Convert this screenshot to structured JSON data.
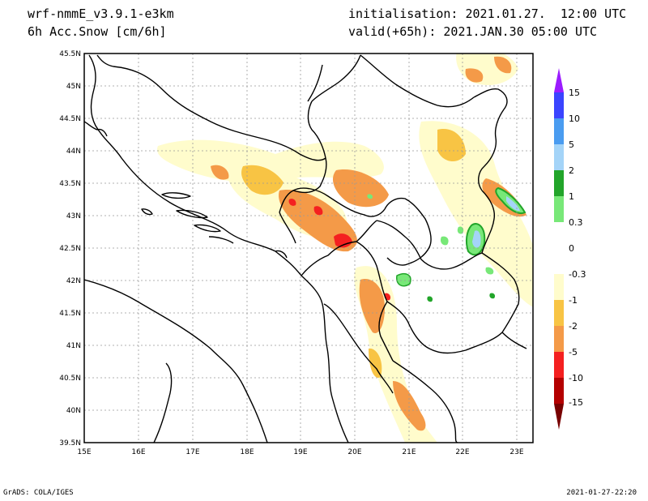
{
  "header": {
    "model": "wrf-nmmE_v3.9.1-e3km",
    "field": "6h Acc.Snow [cm/6h]",
    "initialisation": "initialisation: 2021.01.27.  12:00 UTC",
    "valid": "valid(+65h): 2021.JAN.30 05:00 UTC"
  },
  "footer": {
    "left": "GrADS: COLA/IGES",
    "right": "2021-01-27-22:20"
  },
  "axes": {
    "lat_labels": [
      "45.5N",
      "45N",
      "44.5N",
      "44N",
      "43.5N",
      "43N",
      "42.5N",
      "42N",
      "41.5N",
      "41N",
      "40.5N",
      "40N",
      "39.5N"
    ],
    "lon_labels": [
      "15E",
      "16E",
      "17E",
      "18E",
      "19E",
      "20E",
      "21E",
      "22E",
      "23E"
    ]
  },
  "legend": {
    "labels": [
      "15",
      "10",
      "5",
      "2",
      "1",
      "0.3",
      "0",
      "-0.3",
      "-1",
      "-2",
      "-5",
      "-10",
      "-15"
    ],
    "colors": [
      "#9b1cff",
      "#3a44ff",
      "#4a9cf0",
      "#a4d4f8",
      "#22a52a",
      "#78e878",
      "#ffffff",
      "#fffccc",
      "#f8c444",
      "#f49a48",
      "#f42020",
      "#b40000",
      "#780000"
    ]
  }
}
